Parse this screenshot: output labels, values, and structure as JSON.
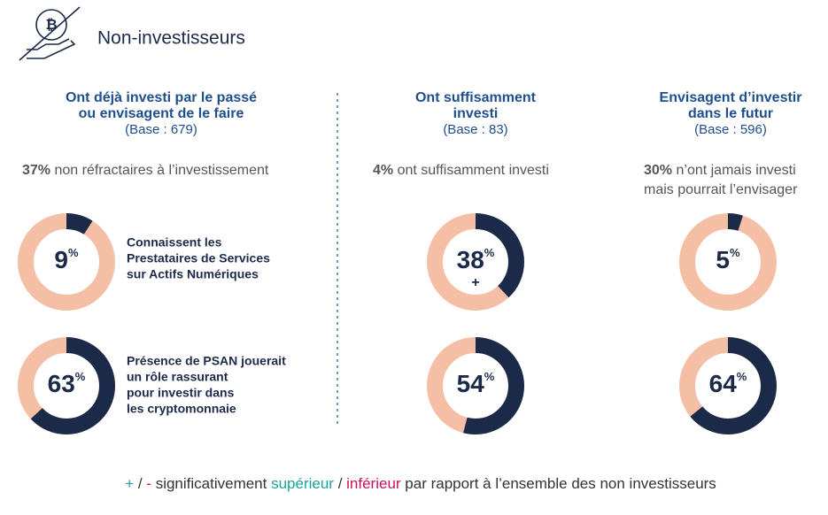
{
  "header": {
    "title": "Non-investisseurs"
  },
  "percent_sign": "%",
  "row_labels": [
    [
      "Connaissent les",
      "Prestataires de Services",
      "sur Actifs Numériques"
    ],
    [
      "Présence de PSAN jouerait",
      "un rôle rassurant",
      "pour investir dans",
      "les cryptomonnaie"
    ]
  ],
  "columns": [
    {
      "heading": [
        "Ont déjà investi par le passé",
        "ou envisagent de le faire"
      ],
      "base": "(Base : 679)",
      "stat_value": "37%",
      "stat_text": [
        "non réfractaires à l’investissement"
      ],
      "donuts": [
        {
          "value": 9
        },
        {
          "value": 63
        }
      ]
    },
    {
      "heading": [
        "Ont suffisamment",
        "investi"
      ],
      "base": "(Base : 83)",
      "stat_value": "4%",
      "stat_text": [
        "ont suffisamment investi"
      ],
      "donuts": [
        {
          "value": 38,
          "significance": "+"
        },
        {
          "value": 54
        }
      ]
    },
    {
      "heading": [
        "Envisagent d’investir",
        "dans le futur"
      ],
      "base": "(Base : 596)",
      "stat_value": "30%",
      "stat_text": [
        "n’ont jamais investi",
        "mais pourrait l’envisager"
      ],
      "donuts": [
        {
          "value": 5
        },
        {
          "value": 64
        }
      ]
    }
  ],
  "footnote": [
    {
      "text": "+",
      "color": "#1aa39a"
    },
    {
      "text": " / ",
      "color": "#333333"
    },
    {
      "text": "-",
      "color": "#c8115c"
    },
    {
      "text": " significativement ",
      "color": "#333333"
    },
    {
      "text": "supérieur",
      "color": "#1aa39a"
    },
    {
      "text": " / ",
      "color": "#333333"
    },
    {
      "text": "inférieur",
      "color": "#c8115c"
    },
    {
      "text": " par rapport à l’ensemble des non investisseurs",
      "color": "#333333"
    }
  ]
}
